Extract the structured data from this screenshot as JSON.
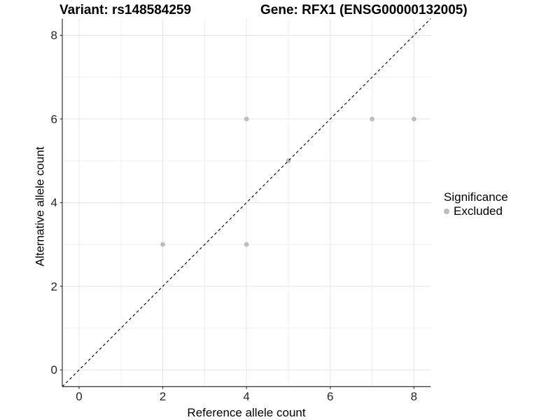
{
  "chart_data": {
    "type": "scatter",
    "title_left": "Variant: rs148584259",
    "title_right": "Gene: RFX1 (ENSG00000132005)",
    "xlabel": "Reference allele count",
    "ylabel": "Alternative allele count",
    "xlim": [
      -0.4,
      8.4
    ],
    "ylim": [
      -0.4,
      8.4
    ],
    "x_ticks": [
      0,
      2,
      4,
      6,
      8
    ],
    "y_ticks": [
      0,
      2,
      4,
      6,
      8
    ],
    "x_minor_gridlines": [
      1,
      3,
      5,
      7
    ],
    "y_minor_gridlines": [
      1,
      3,
      5,
      7
    ],
    "grid": true,
    "legend_position": "right",
    "series": [
      {
        "name": "Excluded",
        "marker": "circle",
        "color": "#bdbdbd",
        "points": [
          [
            2,
            3
          ],
          [
            4,
            3
          ],
          [
            5,
            5
          ],
          [
            4,
            6
          ],
          [
            7,
            6
          ],
          [
            8,
            6
          ]
        ]
      }
    ],
    "reference_line": {
      "kind": "identity",
      "slope": 1,
      "intercept": 0,
      "style": "dashed",
      "color": "#000000"
    },
    "legend": {
      "title": "Significance",
      "items": [
        {
          "label": "Excluded",
          "color": "#bdbdbd"
        }
      ]
    }
  },
  "colors": {
    "grid_major": "#e4e4e4",
    "grid_minor": "#f0f0f0",
    "axis": "#333333",
    "tick_label": "#262626",
    "point": "#bdbdbd"
  }
}
